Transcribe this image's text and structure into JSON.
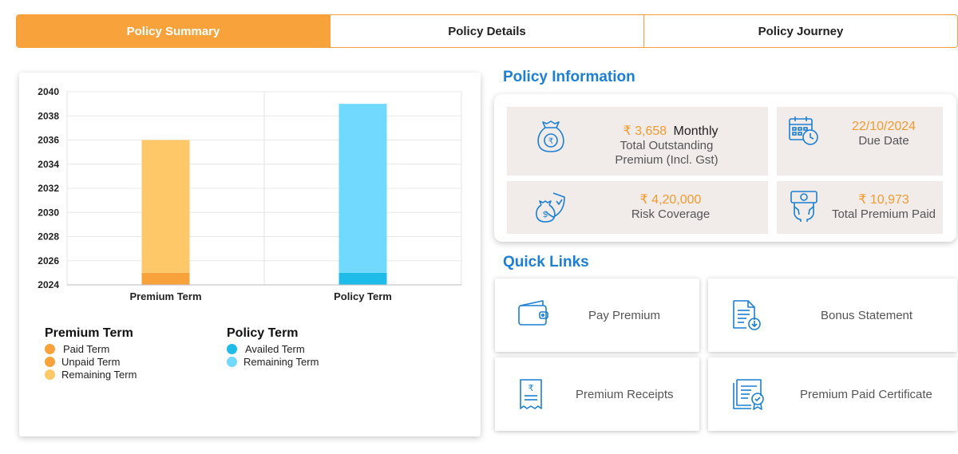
{
  "tabs": [
    {
      "label": "Policy Summary",
      "active": true
    },
    {
      "label": "Policy Details",
      "active": false
    },
    {
      "label": "Policy Journey",
      "active": false
    }
  ],
  "chart_data": {
    "type": "bar",
    "stacked": true,
    "categories": [
      "Premium Term",
      "Policy Term"
    ],
    "y_ticks": [
      "2024",
      "2026",
      "2028",
      "2030",
      "2032",
      "2034",
      "2036",
      "2038",
      "2040"
    ],
    "ylim": [
      2024,
      2040
    ],
    "grid": true,
    "bars": [
      {
        "category": "Premium Term",
        "segments": [
          {
            "name": "Paid Term",
            "from": 2024,
            "to": 2025,
            "color": "#f7a23a"
          },
          {
            "name": "Remaining Term",
            "from": 2025,
            "to": 2036,
            "color": "#fec868"
          }
        ]
      },
      {
        "category": "Policy Term",
        "segments": [
          {
            "name": "Availed Term",
            "from": 2024,
            "to": 2025,
            "color": "#1fbbe9"
          },
          {
            "name": "Remaining Term",
            "from": 2025,
            "to": 2039,
            "color": "#72d9fe"
          }
        ]
      }
    ],
    "legends": [
      {
        "title": "Premium Term",
        "items": [
          {
            "label": "Paid Term",
            "color": "#f7a23a"
          },
          {
            "label": "Unpaid Term",
            "color": "#f7a23a"
          },
          {
            "label": "Remaining Term",
            "color": "#fec868"
          }
        ]
      },
      {
        "title": "Policy Term",
        "items": [
          {
            "label": "Availed Term",
            "color": "#1fbbe9"
          },
          {
            "label": "Remaining Term",
            "color": "#72d9fe"
          }
        ]
      }
    ]
  },
  "policy_info": {
    "title": "Policy Information",
    "outstanding": {
      "amount": "₹ 3,658",
      "suffix": "Monthly",
      "label": "Total Outstanding Premium (Incl. Gst)",
      "icon": "money-bag-rupee-icon"
    },
    "due_date": {
      "value": "22/10/2024",
      "label": "Due Date",
      "icon": "calendar-clock-icon"
    },
    "risk_coverage": {
      "amount": "₹ 4,20,000",
      "label": "Risk Coverage",
      "icon": "shield-money-icon"
    },
    "total_paid": {
      "amount": "₹ 10,973",
      "label": "Total Premium Paid",
      "icon": "hand-cash-icon"
    }
  },
  "quick_links": {
    "title": "Quick Links",
    "items": [
      {
        "label": "Pay Premium",
        "icon": "wallet-icon"
      },
      {
        "label": "Bonus Statement",
        "icon": "document-download-icon"
      },
      {
        "label": "Premium Receipts",
        "icon": "receipt-rupee-icon"
      },
      {
        "label": "Premium Paid Certificate",
        "icon": "certificate-icon"
      }
    ]
  },
  "colors": {
    "accent": "#f7a23a",
    "blue": "#1b7fd4",
    "tile": "#f1ecea"
  }
}
